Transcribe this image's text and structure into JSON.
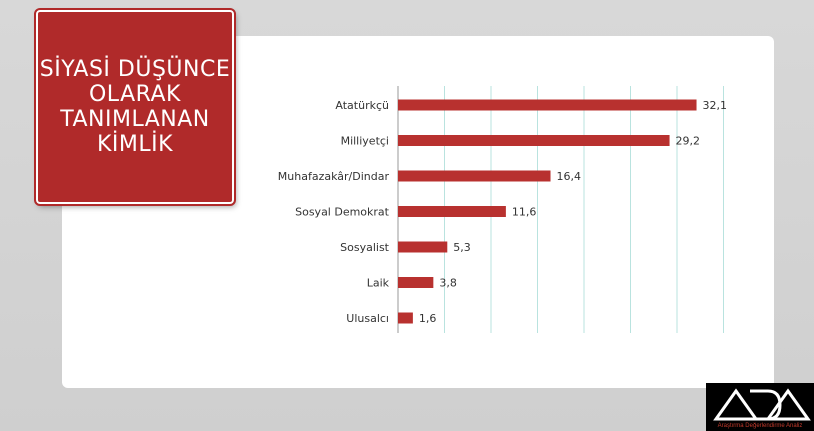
{
  "title_box": {
    "text": "SİYASİ DÜŞÜNCE\nOLARAK\nTANIMLANAN\nKİMLİK"
  },
  "colors": {
    "bar": "#b8312f",
    "title_bg": "#b02a2a",
    "grid": "#b9e3df"
  },
  "chart_data": {
    "type": "bar",
    "orientation": "horizontal",
    "categories": [
      "Atatürkçü",
      "Milliyetçi",
      "Muhafazakâr/Dindar",
      "Sosyal Demokrat",
      "Sosyalist",
      "Laik",
      "Ulusalcı"
    ],
    "values": [
      32.1,
      29.2,
      16.4,
      11.6,
      5.3,
      3.8,
      1.6
    ],
    "value_labels": [
      "32,1",
      "29,2",
      "16,4",
      "11,6",
      "5,3",
      "3,8",
      "1,6"
    ],
    "xlim": [
      0,
      35
    ],
    "grid": true,
    "legend": "none"
  },
  "logo": {
    "mark_icon": "ada-logo-icon",
    "subtitle": "Araştırma Değerlendirme Analiz"
  }
}
